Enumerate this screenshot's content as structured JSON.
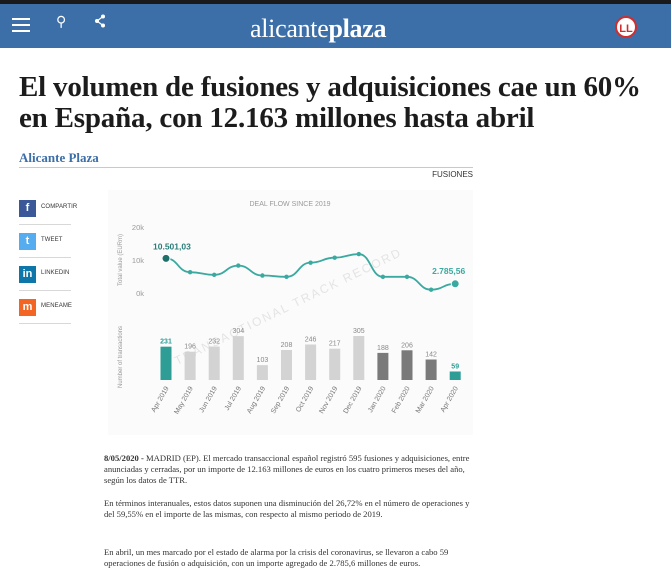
{
  "header": {
    "brand_light": "alicante",
    "brand_bold": "plaza",
    "logo_badge": "LL",
    "icons": [
      "menu-icon",
      "search-icon",
      "share-icon"
    ],
    "bg_color": "#3c6ea7"
  },
  "article": {
    "title": "El volumen de fusiones y adquisiciones cae un 60% en España, con 12.163 millones hasta abril",
    "author": "Alicante Plaza",
    "figure_label": "FUSIONES",
    "p1_date": "8/05/2020 -",
    "p1_text": " MADRID (EP). El mercado transaccional español registró 595 fusiones y adquisiciones, entre anunciadas y cerradas, por un importe de 12.163 millones de euros en los cuatro primeros meses del año, según los datos de TTR.",
    "p2": "En términos interanuales, estos datos suponen una disminución del 26,72% en el número de operaciones y del 59,55% en el importe de las mismas, con respecto al mismo periodo de 2019.",
    "p3": "En abril, un mes marcado por el estado de alarma por la crisis del coronavirus, se llevaron a cabo 59 operaciones de fusión o adquisición, con un importe agregado de 2.785,6 millones de euros."
  },
  "share": {
    "items": [
      {
        "label": "COMPARTIR",
        "glyph": "f",
        "color": "#3b5998",
        "icon": "facebook-icon"
      },
      {
        "label": "TWEET",
        "glyph": "t",
        "color": "#55acee",
        "icon": "twitter-icon"
      },
      {
        "label": "LINKEDIN",
        "glyph": "in",
        "color": "#0e76a8",
        "icon": "linkedin-icon"
      },
      {
        "label": "MENEAME",
        "glyph": "m",
        "color": "#f26522",
        "icon": "meneame-icon"
      }
    ]
  },
  "chart_data": {
    "type": "line+bar",
    "title": "DEAL FLOW SINCE 2019",
    "watermark": "TRANSACTIONAL TRACK RECORD",
    "categories": [
      "Apr 2019",
      "May 2019",
      "Jun 2019",
      "Jul 2019",
      "Aug 2019",
      "Sep 2019",
      "Oct 2019",
      "Nov 2019",
      "Dec 2019",
      "Jan 2020",
      "Feb 2020",
      "Mar 2020",
      "Apr 2020"
    ],
    "line": {
      "ylabel": "Total value (EURm)",
      "ticks": [
        "20k",
        "10k",
        "0k"
      ],
      "ylim": [
        0,
        20000
      ],
      "values": [
        10501,
        6300,
        5500,
        8300,
        5300,
        4900,
        9200,
        10700,
        11800,
        4900,
        4900,
        1000,
        2786
      ],
      "labels": {
        "first": "10.501,03",
        "last": "2.785,56"
      }
    },
    "bars": {
      "ylabel": "Number of transactions",
      "values": [
        231,
        196,
        232,
        304,
        103,
        208,
        246,
        217,
        305,
        188,
        206,
        142,
        59
      ],
      "colors": [
        "#2e9d96",
        "#d3d3d3",
        "#d3d3d3",
        "#d3d3d3",
        "#d3d3d3",
        "#d3d3d3",
        "#d3d3d3",
        "#d3d3d3",
        "#d3d3d3",
        "#7a7a7a",
        "#7a7a7a",
        "#7a7a7a",
        "#2e9d96"
      ]
    },
    "accent": "#3aa9a0"
  }
}
